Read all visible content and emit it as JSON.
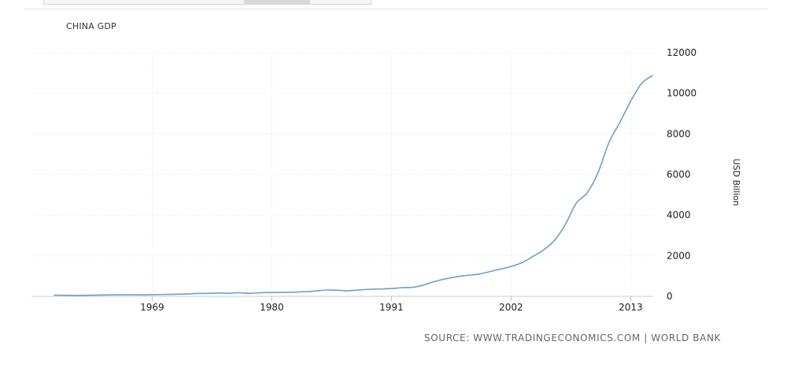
{
  "chart_data": {
    "type": "line",
    "title": "CHINA GDP",
    "ylabel": "USD Billion",
    "xlabel": "",
    "x_ticks": [
      "1969",
      "1980",
      "1991",
      "2002",
      "2013"
    ],
    "y_ticks": [
      "0",
      "2000",
      "4000",
      "6000",
      "8000",
      "10000",
      "12000"
    ],
    "ylim": [
      0,
      12000
    ],
    "xlim": [
      1960,
      2015
    ],
    "grid": true,
    "line_color": "#6a9fd0",
    "series": [
      {
        "x": [
          1960,
          1961,
          1962,
          1963,
          1964,
          1965,
          1966,
          1967,
          1968,
          1969,
          1970,
          1971,
          1972,
          1973,
          1974,
          1975,
          1976,
          1977,
          1978,
          1979,
          1980,
          1981,
          1982,
          1983,
          1984,
          1985,
          1986,
          1987,
          1988,
          1989,
          1990,
          1991,
          1992,
          1993,
          1994,
          1995,
          1996,
          1997,
          1998,
          1999,
          2000,
          2001,
          2002,
          2003,
          2004,
          2005,
          2006,
          2007,
          2008,
          2009,
          2010,
          2011,
          2012,
          2013,
          2014,
          2015
        ],
        "values": [
          60,
          50,
          47,
          50,
          59,
          70,
          76,
          73,
          71,
          79,
          92,
          99,
          113,
          138,
          144,
          163,
          154,
          175,
          149,
          178,
          191,
          196,
          205,
          230,
          260,
          310,
          300,
          273,
          312,
          348,
          361,
          383,
          427,
          445,
          564,
          734,
          864,
          962,
          1030,
          1090,
          1210,
          1340,
          1470,
          1660,
          1960,
          2290,
          2760,
          3550,
          4590,
          5100,
          6100,
          7570,
          8560,
          9610,
          10480,
          10870
        ]
      }
    ]
  },
  "source": "SOURCE: WWW.TRADINGECONOMICS.COM | WORLD BANK"
}
